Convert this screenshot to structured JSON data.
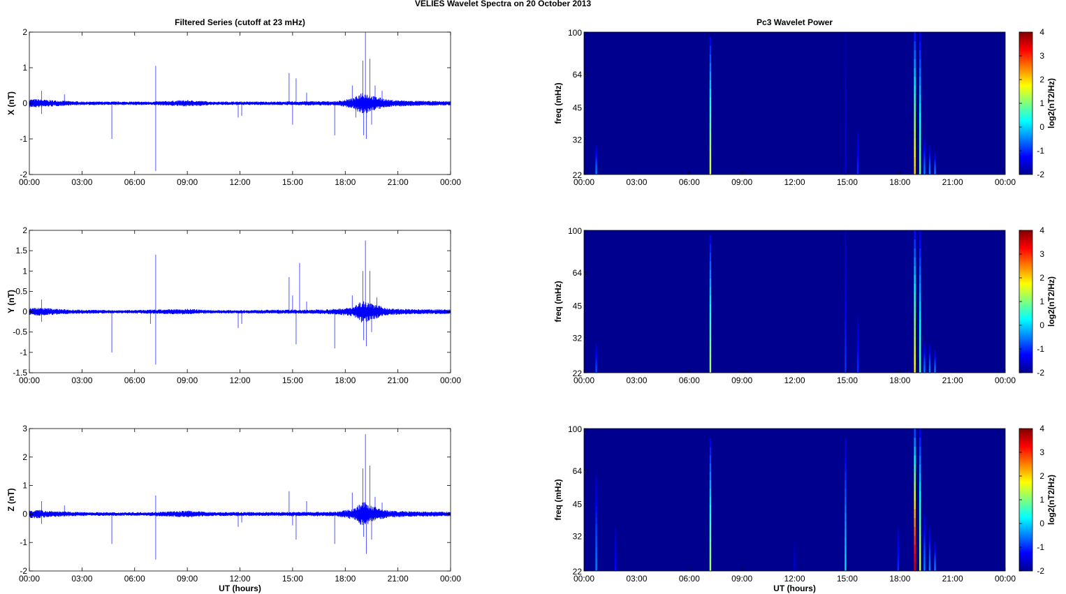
{
  "figure": {
    "suptitle": "VELIES Wavelet Spectra on 20 October   2013"
  },
  "colors": {
    "trace": "#0000ff",
    "axes": "#000000",
    "spectrum_bg": "#00008f",
    "jet": [
      "#00008f",
      "#0000ff",
      "#00ffff",
      "#ffff00",
      "#ff0000",
      "#800000"
    ]
  },
  "chart_data": [
    {
      "type": "line",
      "panel": "X",
      "title": "Filtered Series (cutoff at 23 mHz)",
      "xlabel": "",
      "ylabel": "X (nT)",
      "xlim": [
        "00:00",
        "24:00"
      ],
      "ylim": [
        -2,
        2
      ],
      "xticklabels": [
        "00:00",
        "03:00",
        "06:00",
        "09:00",
        "12:00",
        "15:00",
        "18:00",
        "21:00",
        "00:00"
      ],
      "yticks": [
        -2,
        -1,
        0,
        1,
        2
      ],
      "yticklabels": [
        "-2",
        "-1",
        "0",
        "1",
        "2"
      ],
      "noise_envelope": [
        {
          "t": 0.5,
          "a": 0.12
        },
        {
          "t": 1.0,
          "a": 0.1
        },
        {
          "t": 2.0,
          "a": 0.07
        },
        {
          "t": 3.0,
          "a": 0.05
        },
        {
          "t": 5.0,
          "a": 0.05
        },
        {
          "t": 7.0,
          "a": 0.05
        },
        {
          "t": 9.0,
          "a": 0.09
        },
        {
          "t": 10.5,
          "a": 0.05
        },
        {
          "t": 12.0,
          "a": 0.05
        },
        {
          "t": 14.0,
          "a": 0.05
        },
        {
          "t": 16.0,
          "a": 0.06
        },
        {
          "t": 17.5,
          "a": 0.06
        },
        {
          "t": 18.5,
          "a": 0.15
        },
        {
          "t": 19.0,
          "a": 0.35
        },
        {
          "t": 19.5,
          "a": 0.22
        },
        {
          "t": 20.5,
          "a": 0.1
        },
        {
          "t": 22.0,
          "a": 0.07
        },
        {
          "t": 24.0,
          "a": 0.06
        }
      ],
      "spikes": [
        {
          "t": 0.7,
          "y": 0.35
        },
        {
          "t": 0.7,
          "y": -0.3
        },
        {
          "t": 2.0,
          "y": 0.25
        },
        {
          "t": 4.7,
          "y": -1.0
        },
        {
          "t": 7.2,
          "y": 1.05
        },
        {
          "t": 7.2,
          "y": -1.9
        },
        {
          "t": 11.9,
          "y": -0.4
        },
        {
          "t": 12.1,
          "y": -0.35
        },
        {
          "t": 14.8,
          "y": 0.85
        },
        {
          "t": 15.0,
          "y": -0.6
        },
        {
          "t": 15.2,
          "y": 0.7
        },
        {
          "t": 15.8,
          "y": 0.3
        },
        {
          "t": 17.4,
          "y": -0.9
        },
        {
          "t": 18.4,
          "y": 0.5
        },
        {
          "t": 18.6,
          "y": -0.4
        },
        {
          "t": 19.0,
          "y": 1.2
        },
        {
          "t": 19.05,
          "y": -0.9
        },
        {
          "t": 19.15,
          "y": 2.0
        },
        {
          "t": 19.2,
          "y": -1.0
        },
        {
          "t": 19.4,
          "y": 1.25
        },
        {
          "t": 19.5,
          "y": -0.6
        },
        {
          "t": 19.7,
          "y": 0.5
        },
        {
          "t": 20.1,
          "y": 0.35
        }
      ]
    },
    {
      "type": "line",
      "panel": "Y",
      "title": "",
      "xlabel": "",
      "ylabel": "Y (nT)",
      "xlim": [
        "00:00",
        "24:00"
      ],
      "ylim": [
        -1.5,
        2
      ],
      "xticklabels": [
        "00:00",
        "03:00",
        "06:00",
        "09:00",
        "12:00",
        "15:00",
        "18:00",
        "21:00",
        "00:00"
      ],
      "yticks": [
        -1.5,
        -1,
        -0.5,
        0,
        0.5,
        1,
        1.5,
        2
      ],
      "yticklabels": [
        "-1.5",
        "-1",
        "-0.5",
        "0",
        "0.5",
        "1",
        "1.5",
        "2"
      ],
      "noise_envelope": [
        {
          "t": 0.5,
          "a": 0.1
        },
        {
          "t": 1.0,
          "a": 0.09
        },
        {
          "t": 2.0,
          "a": 0.06
        },
        {
          "t": 3.0,
          "a": 0.05
        },
        {
          "t": 5.0,
          "a": 0.04
        },
        {
          "t": 7.0,
          "a": 0.05
        },
        {
          "t": 9.0,
          "a": 0.07
        },
        {
          "t": 10.5,
          "a": 0.04
        },
        {
          "t": 12.0,
          "a": 0.04
        },
        {
          "t": 14.0,
          "a": 0.05
        },
        {
          "t": 16.0,
          "a": 0.05
        },
        {
          "t": 17.5,
          "a": 0.07
        },
        {
          "t": 18.5,
          "a": 0.12
        },
        {
          "t": 19.0,
          "a": 0.3
        },
        {
          "t": 19.5,
          "a": 0.2
        },
        {
          "t": 20.5,
          "a": 0.08
        },
        {
          "t": 22.0,
          "a": 0.06
        },
        {
          "t": 24.0,
          "a": 0.06
        }
      ],
      "spikes": [
        {
          "t": 0.7,
          "y": 0.3
        },
        {
          "t": 0.7,
          "y": -0.25
        },
        {
          "t": 4.7,
          "y": -1.0
        },
        {
          "t": 6.9,
          "y": -0.3
        },
        {
          "t": 7.2,
          "y": 1.4
        },
        {
          "t": 7.2,
          "y": -1.3
        },
        {
          "t": 11.9,
          "y": -0.4
        },
        {
          "t": 12.1,
          "y": -0.3
        },
        {
          "t": 14.8,
          "y": 0.85
        },
        {
          "t": 15.0,
          "y": 0.4
        },
        {
          "t": 15.2,
          "y": -0.8
        },
        {
          "t": 15.4,
          "y": 1.2
        },
        {
          "t": 15.8,
          "y": 0.25
        },
        {
          "t": 17.4,
          "y": -0.9
        },
        {
          "t": 18.4,
          "y": 0.4
        },
        {
          "t": 19.0,
          "y": 1.0
        },
        {
          "t": 19.05,
          "y": -0.7
        },
        {
          "t": 19.15,
          "y": 1.75
        },
        {
          "t": 19.2,
          "y": -0.85
        },
        {
          "t": 19.4,
          "y": 1.0
        },
        {
          "t": 19.5,
          "y": -0.5
        },
        {
          "t": 19.8,
          "y": 0.35
        }
      ]
    },
    {
      "type": "line",
      "panel": "Z",
      "title": "",
      "xlabel": "UT (hours)",
      "ylabel": "Z (nT)",
      "xlim": [
        "00:00",
        "24:00"
      ],
      "ylim": [
        -2,
        3
      ],
      "xticklabels": [
        "00:00",
        "03:00",
        "06:00",
        "09:00",
        "12:00",
        "15:00",
        "18:00",
        "21:00",
        "00:00"
      ],
      "yticks": [
        -2,
        -1,
        0,
        1,
        2,
        3
      ],
      "yticklabels": [
        "-2",
        "-1",
        "0",
        "1",
        "2",
        "3"
      ],
      "noise_envelope": [
        {
          "t": 0.5,
          "a": 0.15
        },
        {
          "t": 1.0,
          "a": 0.12
        },
        {
          "t": 2.0,
          "a": 0.09
        },
        {
          "t": 3.0,
          "a": 0.07
        },
        {
          "t": 5.0,
          "a": 0.06
        },
        {
          "t": 7.0,
          "a": 0.07
        },
        {
          "t": 9.0,
          "a": 0.12
        },
        {
          "t": 10.5,
          "a": 0.07
        },
        {
          "t": 12.0,
          "a": 0.07
        },
        {
          "t": 14.0,
          "a": 0.07
        },
        {
          "t": 16.0,
          "a": 0.08
        },
        {
          "t": 17.5,
          "a": 0.08
        },
        {
          "t": 18.5,
          "a": 0.2
        },
        {
          "t": 19.0,
          "a": 0.45
        },
        {
          "t": 19.5,
          "a": 0.28
        },
        {
          "t": 20.5,
          "a": 0.12
        },
        {
          "t": 22.0,
          "a": 0.09
        },
        {
          "t": 24.0,
          "a": 0.08
        }
      ],
      "spikes": [
        {
          "t": 0.7,
          "y": 0.45
        },
        {
          "t": 0.7,
          "y": -0.35
        },
        {
          "t": 2.0,
          "y": 0.3
        },
        {
          "t": 4.7,
          "y": -1.05
        },
        {
          "t": 7.2,
          "y": 0.65
        },
        {
          "t": 7.2,
          "y": -1.6
        },
        {
          "t": 11.9,
          "y": -0.45
        },
        {
          "t": 12.1,
          "y": -0.3
        },
        {
          "t": 14.8,
          "y": 0.8
        },
        {
          "t": 15.0,
          "y": -0.4
        },
        {
          "t": 15.2,
          "y": -0.9
        },
        {
          "t": 15.8,
          "y": 0.45
        },
        {
          "t": 17.4,
          "y": -1.05
        },
        {
          "t": 18.4,
          "y": 0.75
        },
        {
          "t": 19.0,
          "y": 1.6
        },
        {
          "t": 19.05,
          "y": -0.8
        },
        {
          "t": 19.15,
          "y": 2.8
        },
        {
          "t": 19.2,
          "y": -1.4
        },
        {
          "t": 19.4,
          "y": 1.7
        },
        {
          "t": 19.5,
          "y": -0.9
        },
        {
          "t": 19.7,
          "y": 0.6
        },
        {
          "t": 20.1,
          "y": 0.4
        }
      ]
    },
    {
      "type": "heatmap",
      "panel": "X",
      "title": "Pc3 Wavelet Power",
      "xlabel": "",
      "ylabel": "freq (mHz)",
      "xlim": [
        "00:00",
        "24:00"
      ],
      "ylim": [
        22,
        100
      ],
      "yscale": "log",
      "xticklabels": [
        "00:00",
        "03:00",
        "06:00",
        "09:00",
        "12:00",
        "15:00",
        "18:00",
        "21:00",
        "00:00"
      ],
      "yticks": [
        22,
        32,
        45,
        64,
        100
      ],
      "yticklabels": [
        "22",
        "32",
        "45",
        "64",
        "100"
      ],
      "colorbar": {
        "label": "log2(nT2/Hz)",
        "range": [
          -2,
          4
        ],
        "ticks": [
          "-2",
          "-1",
          "0",
          "1",
          "2",
          "3",
          "4"
        ]
      },
      "background_value": -2,
      "streaks": [
        {
          "t": 0.7,
          "f_top": 30,
          "peak": -0.5
        },
        {
          "t": 7.2,
          "f_top": 95,
          "peak": 1.5
        },
        {
          "t": 15.6,
          "f_top": 35,
          "peak": -1
        },
        {
          "t": 14.9,
          "f_top": 100,
          "peak": -1.5
        },
        {
          "t": 18.85,
          "f_top": 100,
          "peak": 2
        },
        {
          "t": 19.15,
          "f_top": 100,
          "peak": 1
        },
        {
          "t": 19.4,
          "f_top": 32,
          "peak": -0.5
        },
        {
          "t": 19.7,
          "f_top": 30,
          "peak": -0.5
        },
        {
          "t": 20.0,
          "f_top": 28,
          "peak": -0.5
        }
      ]
    },
    {
      "type": "heatmap",
      "panel": "Y",
      "title": "",
      "xlabel": "",
      "ylabel": "freq (mHz)",
      "xlim": [
        "00:00",
        "24:00"
      ],
      "ylim": [
        22,
        100
      ],
      "yscale": "log",
      "xticklabels": [
        "00:00",
        "03:00",
        "06:00",
        "09:00",
        "12:00",
        "15:00",
        "18:00",
        "21:00",
        "00:00"
      ],
      "yticks": [
        22,
        32,
        45,
        64,
        100
      ],
      "yticklabels": [
        "22",
        "32",
        "45",
        "64",
        "100"
      ],
      "colorbar": {
        "label": "log2(nT2/Hz)",
        "range": [
          -2,
          4
        ],
        "ticks": [
          "-2",
          "-1",
          "0",
          "1",
          "2",
          "3",
          "4"
        ]
      },
      "background_value": -2,
      "streaks": [
        {
          "t": 0.7,
          "f_top": 30,
          "peak": -0.8
        },
        {
          "t": 7.2,
          "f_top": 95,
          "peak": 1.2
        },
        {
          "t": 14.9,
          "f_top": 100,
          "peak": -1
        },
        {
          "t": 15.6,
          "f_top": 40,
          "peak": -1
        },
        {
          "t": 18.85,
          "f_top": 100,
          "peak": 1.8
        },
        {
          "t": 19.15,
          "f_top": 100,
          "peak": 0.8
        },
        {
          "t": 19.4,
          "f_top": 30,
          "peak": -0.5
        },
        {
          "t": 19.7,
          "f_top": 30,
          "peak": -0.5
        },
        {
          "t": 20.0,
          "f_top": 28,
          "peak": -0.5
        }
      ]
    },
    {
      "type": "heatmap",
      "panel": "Z",
      "title": "",
      "xlabel": "UT (hours)",
      "ylabel": "freq (mHz)",
      "xlim": [
        "00:00",
        "24:00"
      ],
      "ylim": [
        22,
        100
      ],
      "yscale": "log",
      "xticklabels": [
        "00:00",
        "03:00",
        "06:00",
        "09:00",
        "12:00",
        "15:00",
        "18:00",
        "21:00",
        "00:00"
      ],
      "yticks": [
        22,
        32,
        45,
        64,
        100
      ],
      "yticklabels": [
        "22",
        "32",
        "45",
        "64",
        "100"
      ],
      "colorbar": {
        "label": "log2(nT2/Hz)",
        "range": [
          -2,
          4
        ],
        "ticks": [
          "-2",
          "-1",
          "0",
          "1",
          "2",
          "3",
          "4"
        ]
      },
      "background_value": -2,
      "streaks": [
        {
          "t": 0.7,
          "f_top": 60,
          "peak": -0.5
        },
        {
          "t": 1.8,
          "f_top": 35,
          "peak": -1.2
        },
        {
          "t": 7.2,
          "f_top": 90,
          "peak": 1.2
        },
        {
          "t": 12.0,
          "f_top": 30,
          "peak": -1.5
        },
        {
          "t": 14.9,
          "f_top": 90,
          "peak": 0
        },
        {
          "t": 17.9,
          "f_top": 35,
          "peak": -1
        },
        {
          "t": 18.85,
          "f_top": 100,
          "peak": 3.5
        },
        {
          "t": 19.15,
          "f_top": 100,
          "peak": 1.5
        },
        {
          "t": 19.4,
          "f_top": 40,
          "peak": -0.5
        },
        {
          "t": 19.7,
          "f_top": 35,
          "peak": -0.5
        },
        {
          "t": 20.0,
          "f_top": 30,
          "peak": -0.5
        }
      ]
    }
  ]
}
